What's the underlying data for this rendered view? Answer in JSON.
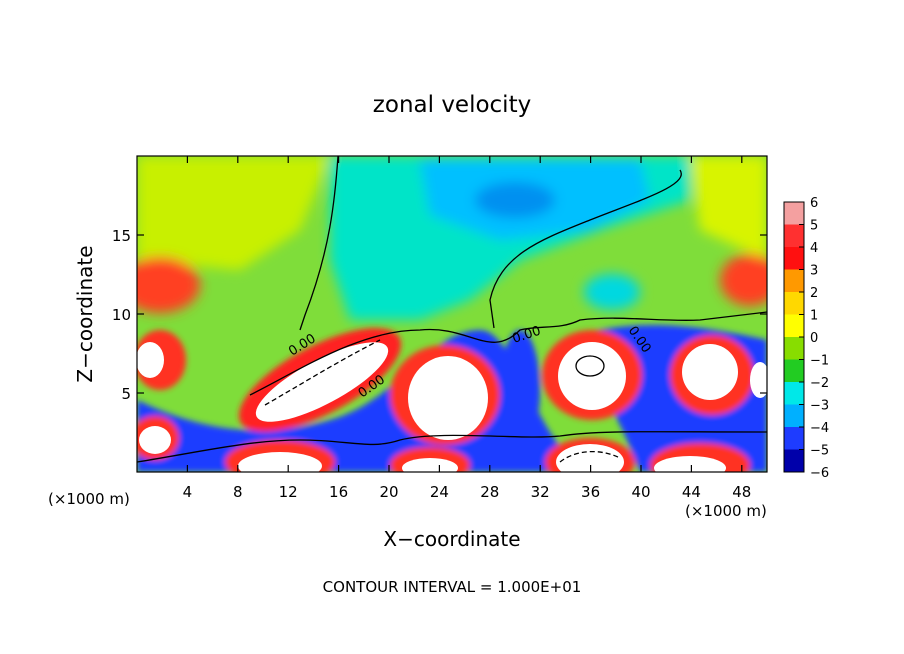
{
  "chart_data": {
    "type": "heatmap",
    "title": "zonal velocity",
    "xlabel": "X−coordinate",
    "ylabel": "Z−coordinate",
    "x_unit_left": "(×1000 m)",
    "x_unit_right": "(×1000 m)",
    "footer": "CONTOUR INTERVAL = 1.000E+01",
    "xlim": [
      0,
      50
    ],
    "ylim": [
      0,
      20
    ],
    "x_ticks": [
      4,
      8,
      12,
      16,
      20,
      24,
      28,
      32,
      36,
      40,
      44,
      48
    ],
    "y_ticks": [
      5,
      10,
      15
    ],
    "x_tick_labels": [
      "4",
      "8",
      "12",
      "16",
      "20",
      "24",
      "28",
      "32",
      "36",
      "40",
      "44",
      "48"
    ],
    "y_tick_labels": [
      "5",
      "10",
      "15"
    ],
    "colorbar": {
      "levels": [
        6,
        5,
        4,
        3,
        2,
        1,
        0,
        -1,
        -2,
        -3,
        -4,
        -5,
        -6
      ],
      "labels": [
        "6",
        "5",
        "4",
        "3",
        "2",
        "1",
        "0",
        "−1",
        "−2",
        "−3",
        "−4",
        "−5",
        "−6"
      ],
      "colors": [
        "#f4a0a0",
        "#ff3030",
        "#ff1010",
        "#ff9900",
        "#ffd800",
        "#ffff00",
        "#88dd00",
        "#22cc22",
        "#00e8e8",
        "#00b0ff",
        "#1e3cff",
        "#0000aa",
        "#7a00a0"
      ]
    },
    "contour_labels": [
      "0.00",
      "0.00",
      "0.00",
      "0.00",
      "0.00"
    ],
    "background_colors": {
      "field_base": "#7fe03a",
      "saturated_high": "#ffffff"
    }
  }
}
